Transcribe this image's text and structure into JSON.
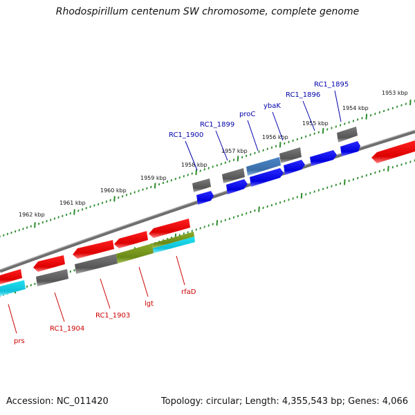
{
  "header": {
    "title": "Rhodospirillum centenum SW chromosome, complete genome"
  },
  "footer": {
    "accession": "Accession: NC_011420",
    "topology": "Topology: circular; Length: 4,355,543 bp; Genes: 4,066"
  },
  "colors": {
    "forward_label": "#0000aa",
    "reverse_label": "#cc0000",
    "tick": "#2a8a2a",
    "backbone": "#808080"
  },
  "kbp_marks": [
    "1953 kbp",
    "1954 kbp",
    "1955 kbp",
    "1956 kbp",
    "1957 kbp",
    "1958 kbp",
    "1959 kbp",
    "1960 kbp",
    "1961 kbp",
    "1962 kbp"
  ],
  "forward_labels": [
    "RC1_1895",
    "RC1_1896",
    "ybaK",
    "proC",
    "RC1_1899",
    "RC1_1900"
  ],
  "reverse_labels": [
    "rfaD",
    "lgt",
    "RC1_1903",
    "RC1_1904",
    "prs"
  ]
}
